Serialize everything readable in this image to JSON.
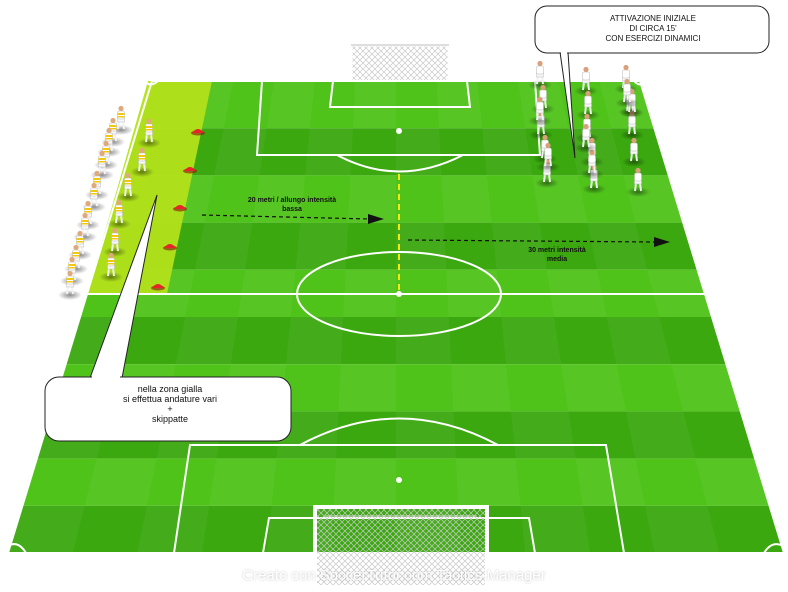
{
  "colors": {
    "pitch_light": "#4fc31a",
    "pitch_dark": "#3aa80e",
    "line": "#ffffff",
    "yellow_zone": "#b2e21a",
    "cone": "#e8232a",
    "arrow": "#111111",
    "yellow_line": "#f5e614"
  },
  "callouts": {
    "top": [
      "ATTIVAZIONE INIZIALE",
      "DI CIRCA 15'",
      "CON ESERCIZI DINAMICI"
    ],
    "bottom": [
      "nella zona gialla",
      "si effettua andature vari",
      "+",
      "skippatte"
    ]
  },
  "arrows": {
    "left_line1": "20 metri / allungo intensità",
    "left_line2": "bassa",
    "right_line1": "30 metri intensità",
    "right_line2": "media"
  },
  "footer": "Creato con SoccerTutor.com Tactics Manager",
  "players": {
    "yellow_team_count": 19,
    "white_team_count": 21
  }
}
